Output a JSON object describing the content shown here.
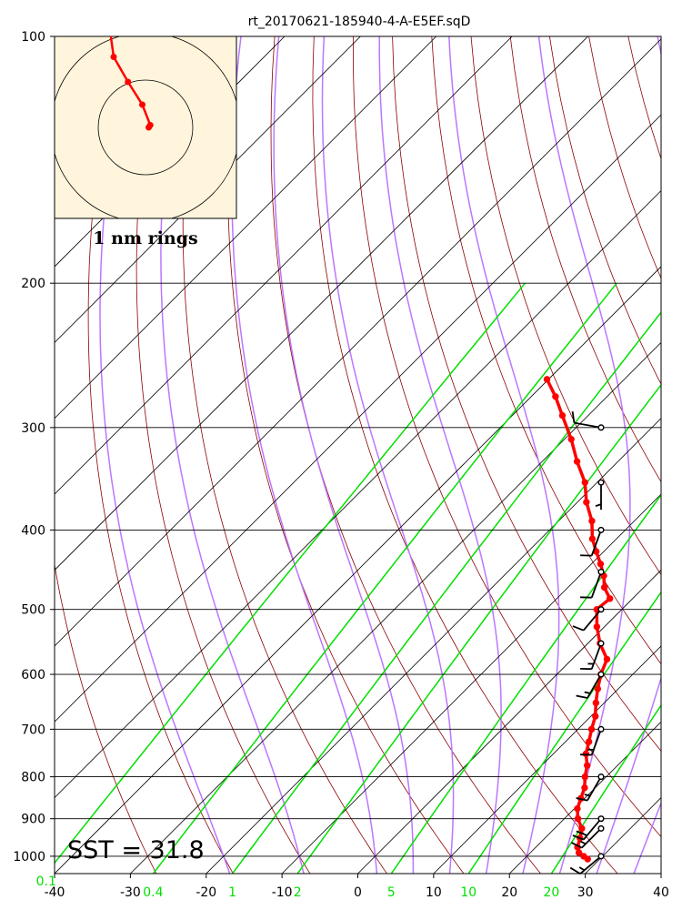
{
  "chart_data": {
    "type": "line",
    "diagram": "skew-T log-P",
    "title": "rt_20170621-185940-4-A-E5EF.sqD",
    "y_axis": {
      "scale": "log",
      "range": [
        1050,
        100
      ],
      "ticks": [
        100,
        200,
        300,
        400,
        500,
        600,
        700,
        800,
        900,
        1000
      ],
      "tick_labels": [
        "100",
        "200",
        "300",
        "400",
        "500",
        "600",
        "700",
        "800",
        "900",
        "1000"
      ]
    },
    "x_axis": {
      "range": [
        -40,
        40
      ],
      "ticks": [
        -40,
        -30,
        -20,
        -10,
        0,
        10,
        20,
        30,
        40
      ],
      "tick_labels": [
        "-40",
        "-30",
        "-20",
        "-10",
        "0",
        "10",
        "20",
        "30",
        "40"
      ]
    },
    "mixing_ratio_labels": [
      "0.1",
      "0.4",
      "1",
      "2",
      "5",
      "10",
      "20"
    ],
    "mixing_ratio_values": [
      0.1,
      0.4,
      1,
      2,
      5,
      10,
      20
    ],
    "annotation": "SST = 31.8",
    "hodograph": {
      "caption": "1 nm rings",
      "trace": [
        [
          -4.1,
          7.6
        ],
        [
          -3.4,
          6.1
        ],
        [
          -2.3,
          4.6
        ],
        [
          -2,
          3.1
        ],
        [
          -1.1,
          2.0
        ],
        [
          -0.2,
          1.0
        ],
        [
          0.3,
          0.1
        ],
        [
          0.2,
          0
        ]
      ]
    },
    "temperature_profile": [
      {
        "p": 1008,
        "t": 28.4
      },
      {
        "p": 1000,
        "t": 27.5
      },
      {
        "p": 990,
        "t": 26.4
      },
      {
        "p": 975,
        "t": 25.5
      },
      {
        "p": 950,
        "t": 24.6
      },
      {
        "p": 925,
        "t": 23.6
      },
      {
        "p": 900,
        "t": 21.8
      },
      {
        "p": 875,
        "t": 20.4
      },
      {
        "p": 850,
        "t": 19.5
      },
      {
        "p": 825,
        "t": 18.6
      },
      {
        "p": 800,
        "t": 17.2
      },
      {
        "p": 775,
        "t": 16.0
      },
      {
        "p": 750,
        "t": 14.3
      },
      {
        "p": 725,
        "t": 13.1
      },
      {
        "p": 700,
        "t": 11.8
      },
      {
        "p": 675,
        "t": 10.6
      },
      {
        "p": 650,
        "t": 8.9
      },
      {
        "p": 625,
        "t": 7.3
      },
      {
        "p": 600,
        "t": 5.8
      },
      {
        "p": 575,
        "t": 4.6
      },
      {
        "p": 550,
        "t": 1.6
      },
      {
        "p": 525,
        "t": -1.0
      },
      {
        "p": 500,
        "t": -3.3
      },
      {
        "p": 485,
        "t": -3.0
      },
      {
        "p": 470,
        "t": -5.2
      },
      {
        "p": 455,
        "t": -6.8
      },
      {
        "p": 440,
        "t": -8.8
      },
      {
        "p": 425,
        "t": -11.0
      },
      {
        "p": 410,
        "t": -13.2
      },
      {
        "p": 390,
        "t": -15.6
      },
      {
        "p": 370,
        "t": -18.8
      },
      {
        "p": 350,
        "t": -21.6
      },
      {
        "p": 330,
        "t": -25.4
      },
      {
        "p": 310,
        "t": -29.1
      },
      {
        "p": 290,
        "t": -33.4
      },
      {
        "p": 275,
        "t": -36.8
      },
      {
        "p": 262,
        "t": -40.2
      }
    ],
    "wind_barbs": [
      {
        "p": 1000,
        "dir": 230,
        "kt": 15
      },
      {
        "p": 925,
        "dir": 225,
        "kt": 15
      },
      {
        "p": 900,
        "dir": 220,
        "kt": 20
      },
      {
        "p": 800,
        "dir": 210,
        "kt": 15
      },
      {
        "p": 700,
        "dir": 200,
        "kt": 15
      },
      {
        "p": 600,
        "dir": 210,
        "kt": 15
      },
      {
        "p": 550,
        "dir": 200,
        "kt": 15
      },
      {
        "p": 500,
        "dir": 220,
        "kt": 10
      },
      {
        "p": 450,
        "dir": 200,
        "kt": 10
      },
      {
        "p": 400,
        "dir": 200,
        "kt": 10
      },
      {
        "p": 350,
        "dir": 180,
        "kt": 5
      },
      {
        "p": 300,
        "dir": 280,
        "kt": 10
      }
    ],
    "colors": {
      "temperature": "#ff0000",
      "isotherms": "#000000",
      "dry_adiabats": "#8b0000",
      "moist_adiabats": "#bb77ff",
      "mixing_ratio": "#00e000",
      "hodograph_bg": "#fff5dc",
      "barbs": "#000000"
    }
  }
}
